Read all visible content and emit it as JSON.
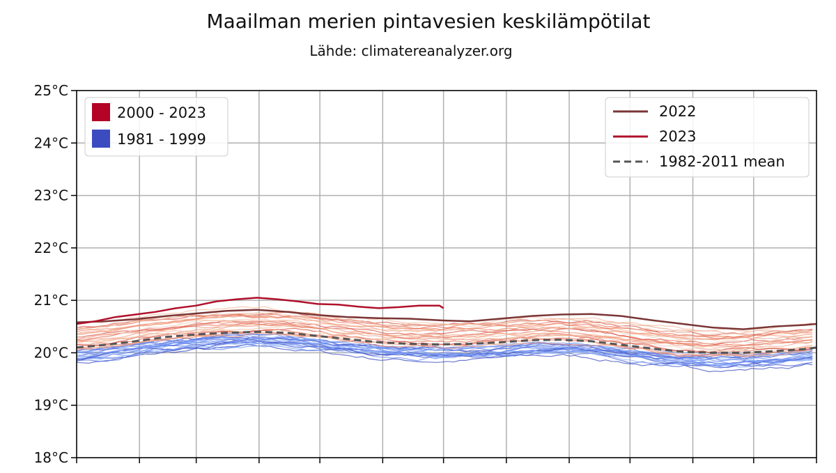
{
  "chart_data": {
    "type": "line",
    "title": "Maailman merien pintavesien keskilämpötilat",
    "subtitle": "Lähde: climatereanalyzer.org",
    "xlabel": "",
    "ylabel": "",
    "x_unit": "day of year",
    "xlim": [
      1,
      366
    ],
    "ylim": [
      18,
      25
    ],
    "y_ticks": [
      {
        "value": 18,
        "label": "18°C"
      },
      {
        "value": 19,
        "label": "19°C"
      },
      {
        "value": 20,
        "label": "20°C"
      },
      {
        "value": 21,
        "label": "21°C"
      },
      {
        "value": 22,
        "label": "22°C"
      },
      {
        "value": 23,
        "label": "23°C"
      },
      {
        "value": 24,
        "label": "24°C"
      },
      {
        "value": 25,
        "label": "25°C"
      }
    ],
    "x_ticks": [
      1,
      32,
      60,
      91,
      121,
      152,
      182,
      213,
      244,
      274,
      305,
      335,
      366
    ],
    "grid": true,
    "legend_left": {
      "placement": "upper-left",
      "entries": [
        {
          "label": "2000 - 2023",
          "color": "#b40426"
        },
        {
          "label": "1981 - 1999",
          "color": "#3b4cc0"
        }
      ]
    },
    "legend_right": {
      "placement": "upper-right",
      "entries": [
        {
          "label": "2022",
          "color": "#7a3535",
          "style": "solid"
        },
        {
          "label": "2023",
          "color": "#b0102a",
          "style": "solid"
        },
        {
          "label": "1982-2011 mean",
          "color": "#555555",
          "style": "dashed"
        }
      ]
    },
    "series": [
      {
        "name": "2022",
        "color": "#7a3535",
        "x": [
          1,
          15,
          30,
          45,
          60,
          75,
          90,
          105,
          120,
          135,
          150,
          165,
          180,
          195,
          210,
          225,
          240,
          255,
          270,
          285,
          300,
          315,
          330,
          345,
          360,
          366
        ],
        "y": [
          20.58,
          20.6,
          20.64,
          20.7,
          20.75,
          20.8,
          20.82,
          20.78,
          20.72,
          20.68,
          20.66,
          20.65,
          20.62,
          20.6,
          20.65,
          20.7,
          20.73,
          20.74,
          20.7,
          20.62,
          20.55,
          20.48,
          20.45,
          20.5,
          20.53,
          20.55
        ]
      },
      {
        "name": "2023",
        "color": "#b0102a",
        "x": [
          1,
          10,
          20,
          30,
          40,
          50,
          60,
          70,
          80,
          90,
          100,
          110,
          120,
          130,
          140,
          150,
          160,
          170,
          180,
          182
        ],
        "y": [
          20.55,
          20.6,
          20.68,
          20.73,
          20.78,
          20.85,
          20.9,
          20.98,
          21.02,
          21.05,
          21.02,
          20.98,
          20.93,
          20.92,
          20.88,
          20.85,
          20.87,
          20.9,
          20.9,
          20.85
        ]
      },
      {
        "name": "1982-2011 mean",
        "color": "#555555",
        "x": [
          1,
          15,
          30,
          45,
          60,
          75,
          90,
          105,
          120,
          135,
          150,
          165,
          180,
          195,
          210,
          225,
          240,
          255,
          270,
          285,
          300,
          315,
          330,
          345,
          360,
          366
        ],
        "y": [
          20.1,
          20.15,
          20.22,
          20.3,
          20.35,
          20.38,
          20.4,
          20.38,
          20.32,
          20.26,
          20.2,
          20.17,
          20.16,
          20.17,
          20.2,
          20.24,
          20.25,
          20.22,
          20.15,
          20.08,
          20.02,
          20.0,
          20.0,
          20.03,
          20.07,
          20.1
        ]
      }
    ],
    "background_bands": {
      "description_warm": "2000 - 2023",
      "description_cool": "1981 - 1999",
      "warm_range": [
        20.2,
        20.9
      ],
      "cool_range": [
        19.7,
        20.35
      ]
    }
  }
}
